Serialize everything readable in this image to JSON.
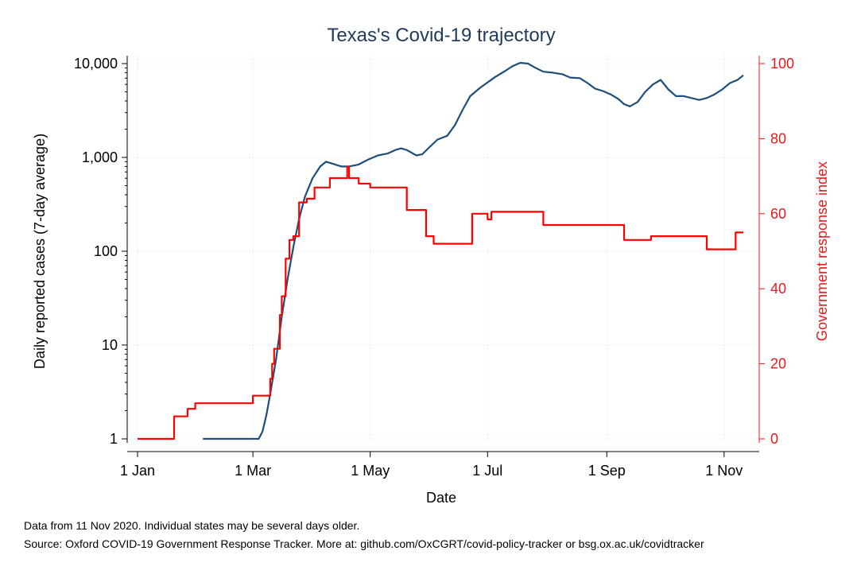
{
  "chart_data": {
    "type": "line",
    "title": "Texas's Covid-19 trajectory",
    "xlabel": "Date",
    "ylabel_left": "Daily reported cases (7-day average)",
    "ylabel_right": "Government response index",
    "x_ticks": [
      "1 Jan",
      "1 Mar",
      "1 May",
      "1 Jul",
      "1 Sep",
      "1 Nov"
    ],
    "y_left_ticks": [
      "1",
      "10",
      "100",
      "1,000",
      "10,000"
    ],
    "y_left_scale": "log",
    "y_left_range": [
      1,
      10000
    ],
    "y_right_ticks": [
      "0",
      "20",
      "40",
      "60",
      "80",
      "100"
    ],
    "y_right_range": [
      0,
      100
    ],
    "x_range": [
      "2020-01-01",
      "2020-11-11"
    ],
    "grid": true,
    "colors": {
      "cases": "#1f4e79",
      "index": "#ff0000",
      "title": "#1f3a5a"
    },
    "series": [
      {
        "axis": "left",
        "points": [
          [
            "2020-02-04",
            1
          ],
          [
            "2020-03-04",
            1
          ],
          [
            "2020-03-06",
            1.2
          ],
          [
            "2020-03-08",
            1.8
          ],
          [
            "2020-03-10",
            3
          ],
          [
            "2020-03-13",
            7
          ],
          [
            "2020-03-16",
            20
          ],
          [
            "2020-03-19",
            50
          ],
          [
            "2020-03-22",
            110
          ],
          [
            "2020-03-25",
            220
          ],
          [
            "2020-03-28",
            380
          ],
          [
            "2020-04-01",
            600
          ],
          [
            "2020-04-05",
            800
          ],
          [
            "2020-04-08",
            900
          ],
          [
            "2020-04-12",
            850
          ],
          [
            "2020-04-16",
            800
          ],
          [
            "2020-04-20",
            800
          ],
          [
            "2020-04-25",
            840
          ],
          [
            "2020-04-30",
            950
          ],
          [
            "2020-05-05",
            1050
          ],
          [
            "2020-05-10",
            1100
          ],
          [
            "2020-05-14",
            1200
          ],
          [
            "2020-05-17",
            1250
          ],
          [
            "2020-05-20",
            1200
          ],
          [
            "2020-05-25",
            1050
          ],
          [
            "2020-05-28",
            1080
          ],
          [
            "2020-06-01",
            1300
          ],
          [
            "2020-06-05",
            1550
          ],
          [
            "2020-06-10",
            1700
          ],
          [
            "2020-06-14",
            2200
          ],
          [
            "2020-06-18",
            3200
          ],
          [
            "2020-06-22",
            4500
          ],
          [
            "2020-06-27",
            5500
          ],
          [
            "2020-07-01",
            6300
          ],
          [
            "2020-07-05",
            7200
          ],
          [
            "2020-07-10",
            8300
          ],
          [
            "2020-07-14",
            9400
          ],
          [
            "2020-07-18",
            10200
          ],
          [
            "2020-07-22",
            10000
          ],
          [
            "2020-07-26",
            9000
          ],
          [
            "2020-07-30",
            8200
          ],
          [
            "2020-08-04",
            8000
          ],
          [
            "2020-08-09",
            7700
          ],
          [
            "2020-08-13",
            7100
          ],
          [
            "2020-08-18",
            7000
          ],
          [
            "2020-08-22",
            6200
          ],
          [
            "2020-08-26",
            5400
          ],
          [
            "2020-08-30",
            5100
          ],
          [
            "2020-09-03",
            4700
          ],
          [
            "2020-09-07",
            4200
          ],
          [
            "2020-09-10",
            3700
          ],
          [
            "2020-09-13",
            3500
          ],
          [
            "2020-09-17",
            3900
          ],
          [
            "2020-09-21",
            5000
          ],
          [
            "2020-09-25",
            6000
          ],
          [
            "2020-09-29",
            6700
          ],
          [
            "2020-10-03",
            5300
          ],
          [
            "2020-10-07",
            4500
          ],
          [
            "2020-10-11",
            4500
          ],
          [
            "2020-10-15",
            4300
          ],
          [
            "2020-10-19",
            4100
          ],
          [
            "2020-10-23",
            4300
          ],
          [
            "2020-10-27",
            4700
          ],
          [
            "2020-10-31",
            5300
          ],
          [
            "2020-11-04",
            6200
          ],
          [
            "2020-11-08",
            6700
          ],
          [
            "2020-11-11",
            7500
          ]
        ]
      },
      {
        "axis": "right",
        "step": true,
        "points": [
          [
            "2020-01-01",
            0
          ],
          [
            "2020-01-20",
            6
          ],
          [
            "2020-01-27",
            8
          ],
          [
            "2020-01-31",
            9.5
          ],
          [
            "2020-03-01",
            11.5
          ],
          [
            "2020-03-10",
            16
          ],
          [
            "2020-03-11",
            20
          ],
          [
            "2020-03-12",
            24
          ],
          [
            "2020-03-15",
            33
          ],
          [
            "2020-03-16",
            38
          ],
          [
            "2020-03-18",
            48
          ],
          [
            "2020-03-20",
            53
          ],
          [
            "2020-03-22",
            54
          ],
          [
            "2020-03-25",
            63
          ],
          [
            "2020-03-29",
            64
          ],
          [
            "2020-04-02",
            67
          ],
          [
            "2020-04-10",
            69.5
          ],
          [
            "2020-04-19",
            72.5
          ],
          [
            "2020-04-20",
            69.5
          ],
          [
            "2020-04-25",
            68
          ],
          [
            "2020-05-01",
            67
          ],
          [
            "2020-05-20",
            61
          ],
          [
            "2020-05-30",
            54
          ],
          [
            "2020-06-03",
            52
          ],
          [
            "2020-06-23",
            60
          ],
          [
            "2020-07-01",
            58.5
          ],
          [
            "2020-07-03",
            60.5
          ],
          [
            "2020-07-30",
            57
          ],
          [
            "2020-09-24",
            54
          ],
          [
            "2020-09-10",
            53
          ],
          [
            "2020-10-23",
            50.5
          ],
          [
            "2020-11-07",
            55
          ]
        ]
      }
    ]
  },
  "notes": {
    "line1": "Data from 11 Nov 2020. Individual states may be several days older.",
    "line2": "Source: Oxford COVID-19 Government Response Tracker. More at: github.com/OxCGRT/covid-policy-tracker or bsg.ox.ac.uk/covidtracker"
  }
}
